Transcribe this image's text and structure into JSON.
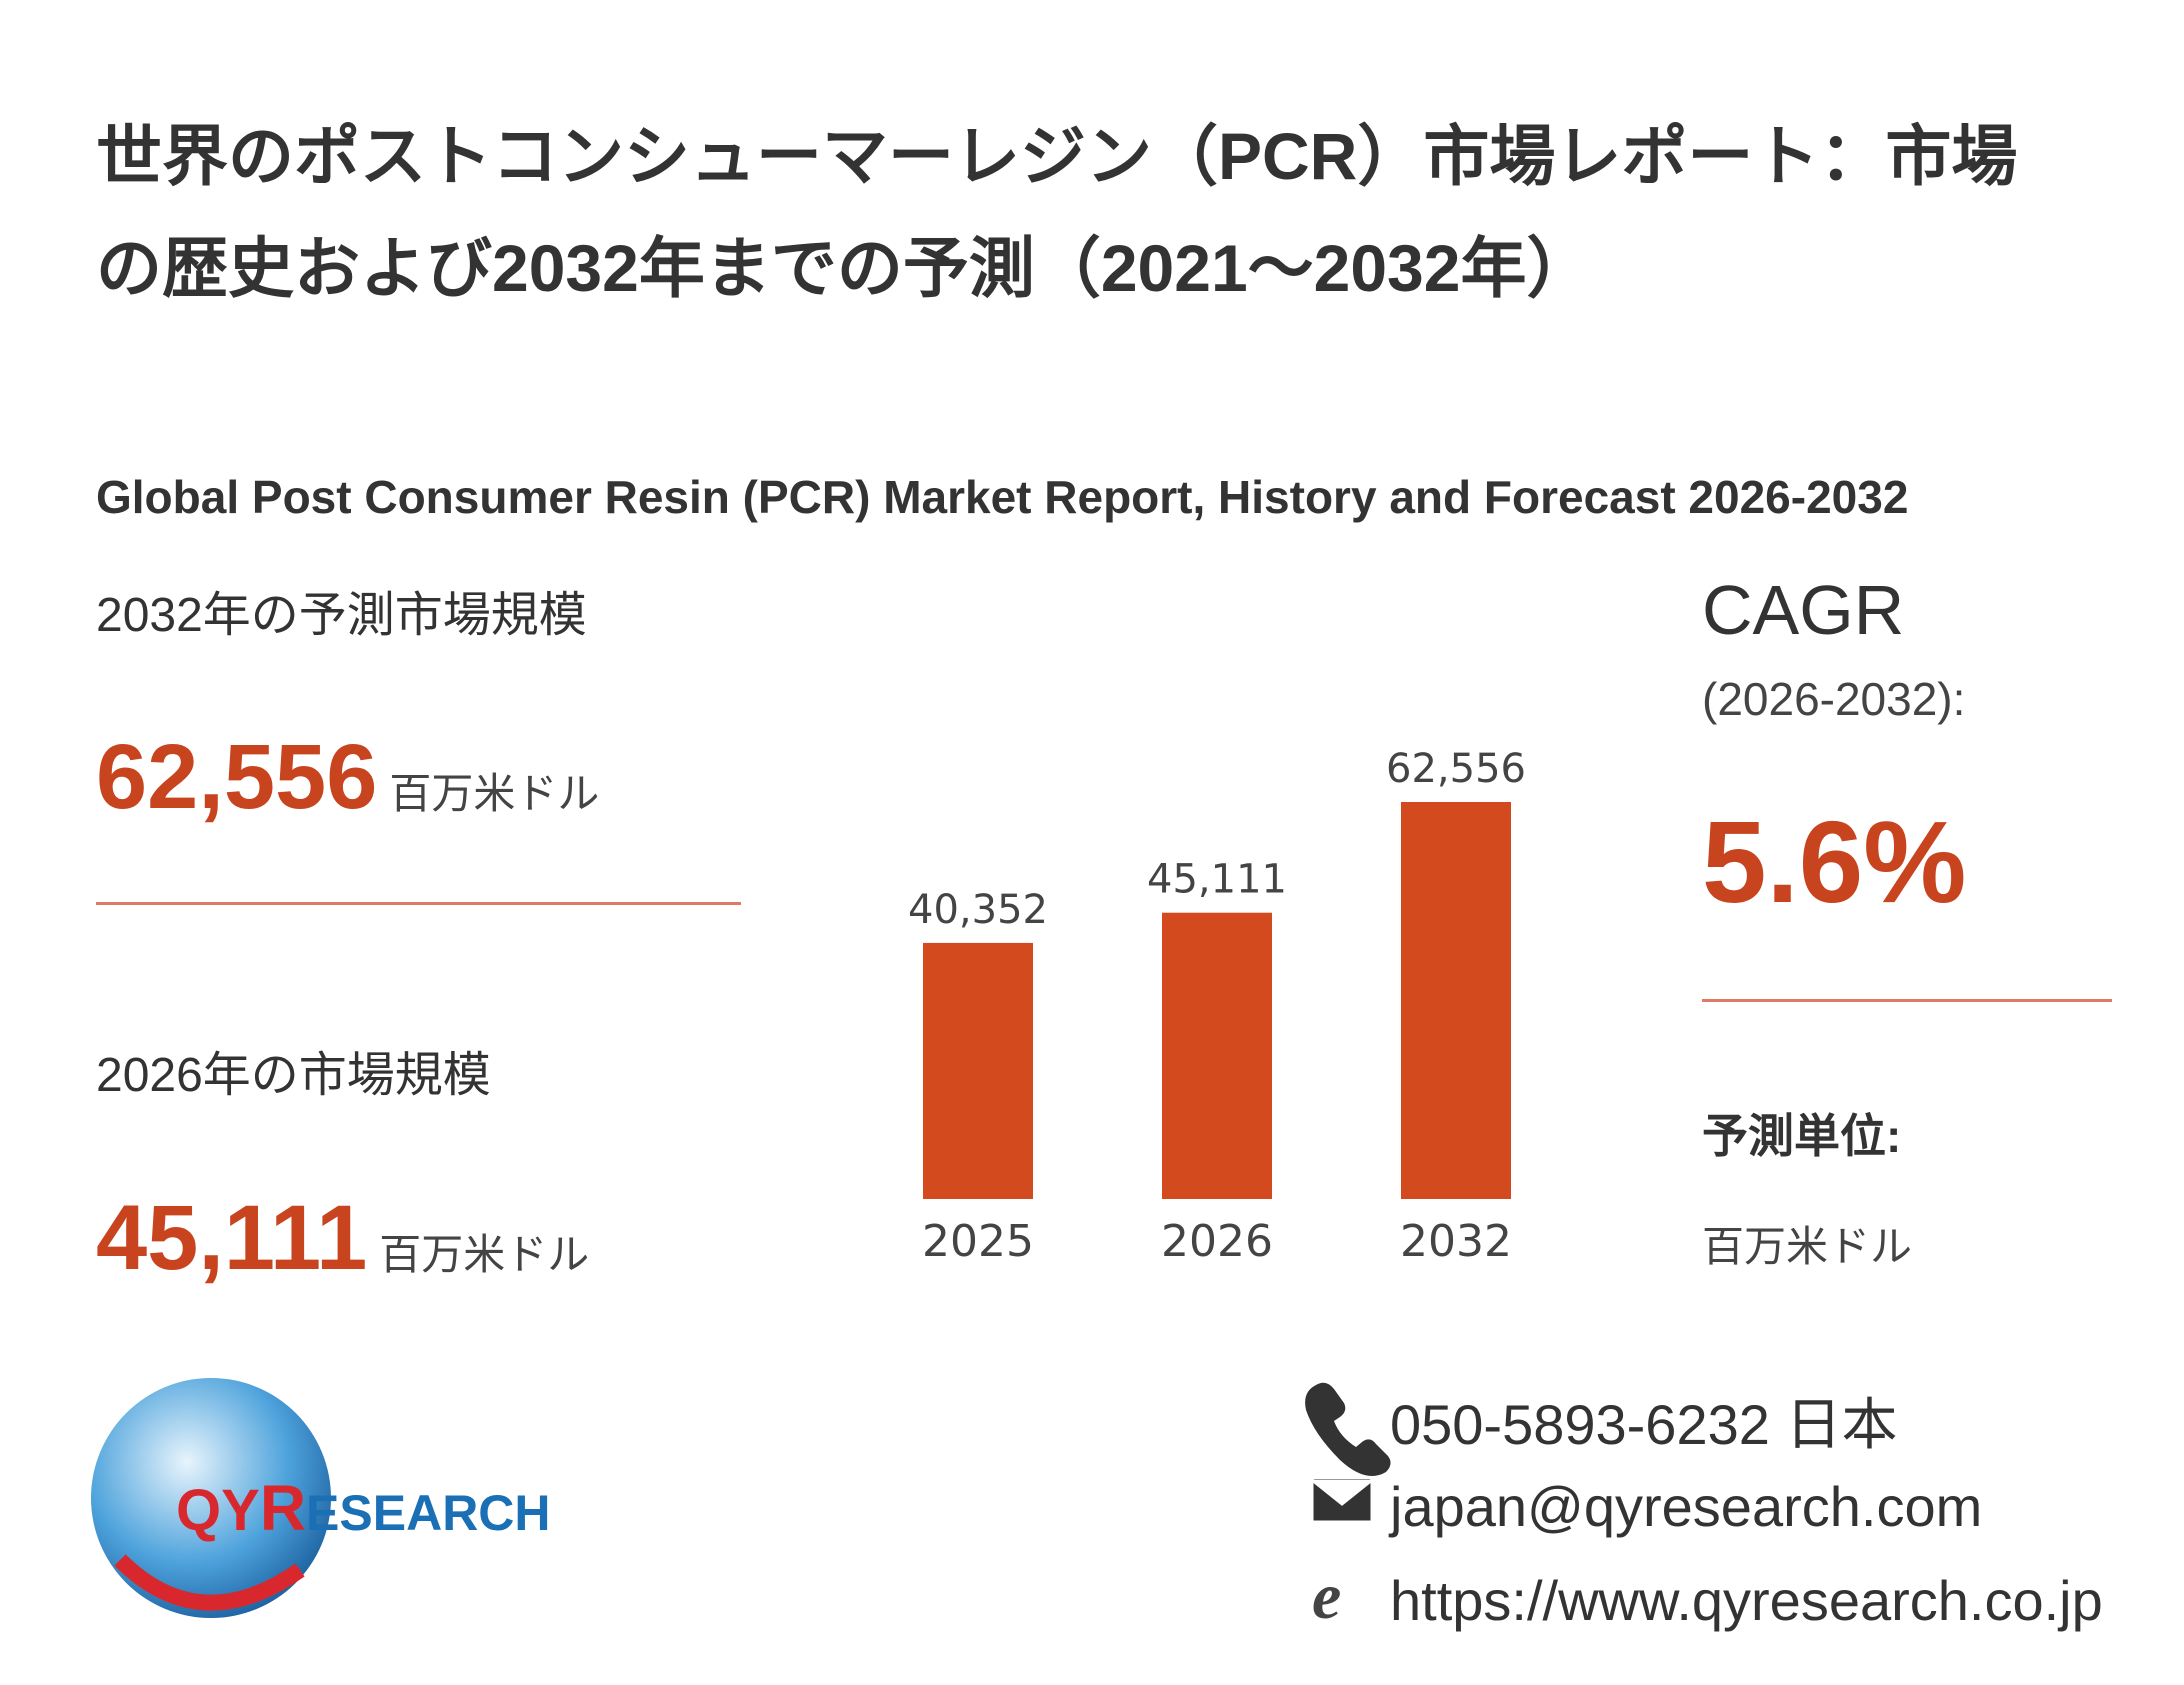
{
  "title": "世界のポストコンシューマーレジン（PCR）市場レポート：市場の歴史および2032年までの予測（2021～2032年）",
  "subtitle": "Global Post Consumer Resin (PCR) Market Report, History and Forecast 2026-2032",
  "forecast": {
    "label": "2032年の予測市場規模",
    "value": "62,556",
    "unit": "百万米ドル"
  },
  "base": {
    "label": "2026年の市場規模",
    "value": "45,111",
    "unit": "百万米ドル"
  },
  "cagr": {
    "label": "CAGR",
    "period": "(2026-2032):",
    "value": "5.6%"
  },
  "forecast_unit": {
    "label": "予測単位:",
    "value": "百万米ドル"
  },
  "contact": {
    "phone": "050-5893-6232 日本",
    "email": "japan@qyresearch.com",
    "url": "https://www.qyresearch.co.jp"
  },
  "logo": {
    "qy": "QY",
    "r": "R",
    "rest": "ESEARCH"
  },
  "chart_data": {
    "type": "bar",
    "categories": [
      "2025",
      "2026",
      "2032"
    ],
    "values": [
      40352,
      45111,
      62556
    ],
    "value_labels": [
      "40,352",
      "45,111",
      "62,556"
    ],
    "color": "#d24a1e"
  }
}
